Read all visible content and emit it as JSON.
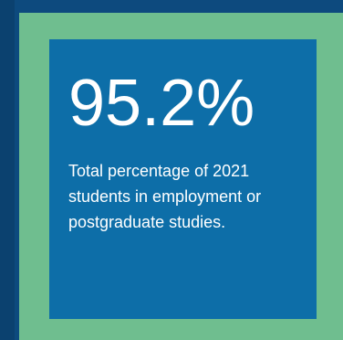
{
  "stat": {
    "value": "95.2%",
    "caption": "Total percentage of 2021 students in employment or postgraduate studies."
  },
  "colors": {
    "outer_background": "#0d4a7e",
    "frame": "#6fbe8f",
    "panel": "#0d6ea8",
    "text": "#ffffff"
  }
}
